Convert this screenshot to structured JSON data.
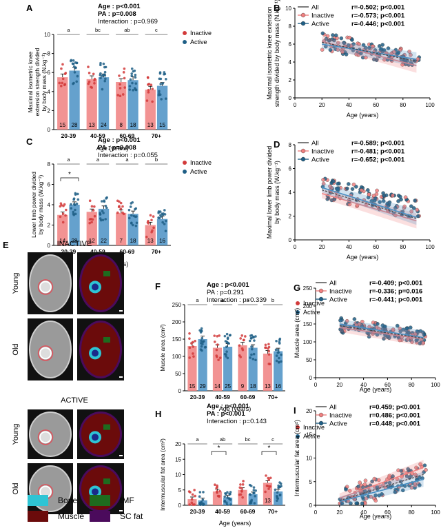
{
  "colors": {
    "inactive": "#f08080",
    "active": "#4a90c4",
    "inactive_dot": "#d23a3a",
    "active_dot": "#1f5f86",
    "all_line": "#444444"
  },
  "bar_panels": [
    {
      "letter": "A",
      "stats": [
        "Age : p<0.001",
        "PA : p=0.008",
        "Interaction : p=0.969"
      ],
      "stats_bold": [
        true,
        true,
        false
      ],
      "ylabel": [
        "Maximal isometric knee",
        "extension strength divided",
        "by body mass (N.kg⁻¹)"
      ],
      "xlabel": "Age (years)",
      "legend": [
        "Inactive",
        "Active"
      ],
      "chart_data": {
        "type": "bar",
        "categories": [
          "20-39",
          "40-59",
          "60-69",
          "70+"
        ],
        "ylim": [
          0,
          10
        ],
        "yticks": [
          "0",
          "2",
          "4",
          "6",
          "8",
          "10"
        ],
        "series": [
          {
            "name": "Inactive",
            "values": [
              5.5,
              5.3,
              5.0,
              4.2
            ],
            "n": [
              "15",
              "13",
              "8",
              "13"
            ]
          },
          {
            "name": "Active",
            "values": [
              6.2,
              5.5,
              5.2,
              4.6
            ],
            "n": [
              "28",
              "24",
              "18",
              "15"
            ]
          }
        ],
        "group_letters": [
          "a",
          "bc",
          "ab",
          "c"
        ],
        "star": ""
      }
    },
    {
      "letter": "C",
      "stats": [
        "Age : p<0.001",
        "PA : p=0.008",
        "Interaction : p=0.055"
      ],
      "stats_bold": [
        true,
        true,
        false
      ],
      "ylabel": [
        "Lower limb power divided",
        "by body mass (W.kg⁻¹)"
      ],
      "xlabel": "Age (years)",
      "legend": [
        "Inactive",
        "Active"
      ],
      "chart_data": {
        "type": "bar",
        "categories": [
          "20-39",
          "40-59",
          "60-69",
          "70+"
        ],
        "ylim": [
          0,
          8
        ],
        "yticks": [
          "0",
          "2",
          "4",
          "6",
          "8"
        ],
        "series": [
          {
            "name": "Inactive",
            "values": [
              3.0,
              3.3,
              3.2,
              2.0
            ],
            "n": [
              "14",
              "12",
              "7",
              "13"
            ]
          },
          {
            "name": "Active",
            "values": [
              4.0,
              3.6,
              3.1,
              2.6
            ],
            "n": [
              "28",
              "22",
              "18",
              "16"
            ]
          }
        ],
        "group_letters": [
          "a",
          "a",
          "a",
          "b"
        ],
        "star": "*"
      }
    },
    {
      "letter": "F",
      "stats": [
        "Age : p<0.001",
        "PA : p=0.291",
        "Interaction : p=0.339"
      ],
      "stats_bold": [
        true,
        false,
        false
      ],
      "ylabel": [
        "Muscle area (cm²)"
      ],
      "xlabel": "Age (years)",
      "legend": [
        "Inactive",
        "Active"
      ],
      "chart_data": {
        "type": "bar",
        "categories": [
          "20-39",
          "40-59",
          "60-69",
          "70+"
        ],
        "ylim": [
          0,
          250
        ],
        "yticks": [
          "0",
          "50",
          "100",
          "150",
          "200",
          "250"
        ],
        "series": [
          {
            "name": "Inactive",
            "values": [
              130,
              125,
              132,
              108
            ],
            "n": [
              "15",
              "14",
              "9",
              "13"
            ]
          },
          {
            "name": "Active",
            "values": [
              150,
              128,
              125,
              115
            ],
            "n": [
              "29",
              "25",
              "18",
              "16"
            ]
          }
        ],
        "group_letters": [
          "a",
          "a",
          "a",
          "b"
        ],
        "star": ""
      }
    },
    {
      "letter": "H",
      "stats": [
        "Age : p<0.001",
        "PA : p<0.001",
        "Interaction : p=0.143"
      ],
      "stats_bold": [
        true,
        true,
        false
      ],
      "ylabel": [
        "Intermuscular fat area (cm²)"
      ],
      "xlabel": "Age (years)",
      "legend": [
        "Inactive",
        "Active"
      ],
      "chart_data": {
        "type": "bar",
        "categories": [
          "20-39",
          "40-59",
          "60-69",
          "70+"
        ],
        "ylim": [
          0,
          20
        ],
        "yticks": [
          "0",
          "5",
          "10",
          "15",
          "20"
        ],
        "series": [
          {
            "name": "Inactive",
            "values": [
              2.0,
              4.5,
              5.0,
              7.3
            ],
            "n": [
              "",
              "",
              "",
              "13"
            ]
          },
          {
            "name": "Active",
            "values": [
              1.6,
              2.5,
              3.6,
              4.5
            ],
            "n": [
              "",
              "",
              "",
              ""
            ]
          }
        ],
        "group_letters": [
          "a",
          "ab",
          "bc",
          "c"
        ],
        "star": "*"
      }
    }
  ],
  "scatter_panels": [
    {
      "letter": "B",
      "ylabel": [
        "Maximal isometric knee extension",
        "strength divided by body mass (N.kg⁻¹)"
      ],
      "xlabel": "Age (years)",
      "legend": [
        {
          "name": "All",
          "stat": "r=-0.502; p<0.001"
        },
        {
          "name": "Inactive",
          "stat": "r=-0.573; p<0.001"
        },
        {
          "name": "Active",
          "stat": "r=-0.446; p<0.001"
        }
      ],
      "chart_data": {
        "type": "scatter",
        "xlim": [
          0,
          100
        ],
        "ylim": [
          0,
          10
        ],
        "xticks": [
          "0",
          "20",
          "40",
          "60",
          "80",
          "100"
        ],
        "yticks": [
          "0",
          "2",
          "4",
          "6",
          "8",
          "10"
        ],
        "trend": {
          "all": [
            [
              20,
              6.2
            ],
            [
              90,
              4.1
            ]
          ],
          "inactive": [
            [
              20,
              6.3
            ],
            [
              90,
              3.6
            ]
          ],
          "active": [
            [
              20,
              6.0
            ],
            [
              90,
              4.3
            ]
          ]
        },
        "ycenter": [
          6.3,
          -0.028
        ],
        "spread": 1.0
      }
    },
    {
      "letter": "D",
      "ylabel": [
        "Maximal lower limb power divided",
        "by body mass (W.kg⁻¹)"
      ],
      "xlabel": "Age (years)",
      "legend": [
        {
          "name": "All",
          "stat": "r=-0.589; p<0.001"
        },
        {
          "name": "Inactive",
          "stat": "r=-0.481; p<0.001"
        },
        {
          "name": "Active",
          "stat": "r=-0.652; p<0.001"
        }
      ],
      "chart_data": {
        "type": "scatter",
        "xlim": [
          0,
          100
        ],
        "ylim": [
          0,
          8
        ],
        "xticks": [
          "0",
          "20",
          "40",
          "60",
          "80",
          "100"
        ],
        "yticks": [
          "0",
          "2",
          "4",
          "6",
          "8"
        ],
        "trend": {
          "all": [
            [
              20,
              4.2
            ],
            [
              90,
              1.8
            ]
          ],
          "inactive": [
            [
              20,
              3.9
            ],
            [
              90,
              1.6
            ]
          ],
          "active": [
            [
              20,
              4.4
            ],
            [
              90,
              1.9
            ]
          ]
        },
        "ycenter": [
          4.4,
          -0.033
        ],
        "spread": 0.9
      }
    },
    {
      "letter": "G",
      "ylabel": [
        "Muscle area (cm²)"
      ],
      "xlabel": "Age (years)",
      "legend": [
        {
          "name": "All",
          "stat": "r=-0.409; p<0.001"
        },
        {
          "name": "Inactive",
          "stat": "r=-0.336; p=0.016"
        },
        {
          "name": "Active",
          "stat": "r=-0.441; p<0.001"
        }
      ],
      "chart_data": {
        "type": "scatter",
        "xlim": [
          0,
          100
        ],
        "ylim": [
          0,
          250
        ],
        "xticks": [
          "0",
          "20",
          "40",
          "60",
          "80",
          "100"
        ],
        "yticks": [
          "0",
          "50",
          "100",
          "150",
          "200",
          "250"
        ],
        "trend": {
          "all": [
            [
              20,
              145
            ],
            [
              90,
              110
            ]
          ],
          "inactive": [
            [
              20,
              140
            ],
            [
              90,
              108
            ]
          ],
          "active": [
            [
              20,
              150
            ],
            [
              90,
              112
            ]
          ]
        },
        "ycenter": [
          148,
          -0.5
        ],
        "spread": 22
      }
    },
    {
      "letter": "I",
      "ylabel": [
        "Intermuscular fat area (cm²)"
      ],
      "xlabel": "Age (years)",
      "legend": [
        {
          "name": "All",
          "stat": "r=0.459; p<0.001"
        },
        {
          "name": "Inactive",
          "stat": "r=0.486; p<0.001"
        },
        {
          "name": "Active",
          "stat": "r=0.448; p<0.001"
        }
      ],
      "chart_data": {
        "type": "scatter",
        "xlim": [
          0,
          100
        ],
        "ylim": [
          0,
          20
        ],
        "xticks": [
          "0",
          "20",
          "40",
          "60",
          "80",
          "100"
        ],
        "yticks": [
          "0",
          "5",
          "10",
          "15",
          "20"
        ],
        "trend": {
          "all": [
            [
              20,
              1.0
            ],
            [
              90,
              6.5
            ]
          ],
          "inactive": [
            [
              20,
              1.5
            ],
            [
              90,
              8.0
            ]
          ],
          "active": [
            [
              20,
              0.8
            ],
            [
              90,
              5.5
            ]
          ]
        },
        "ycenter": [
          1.0,
          0.08
        ],
        "spread": 2.5
      }
    }
  ],
  "panel_e": {
    "letter": "E",
    "inactive_title": "INACTIVE",
    "active_title": "ACTIVE",
    "row_labels": [
      "Young",
      "Old",
      "Young",
      "Old"
    ],
    "legend": [
      {
        "label": "Bone",
        "color": "#2ec4d4"
      },
      {
        "label": "IMF",
        "color": "#1e6b1e"
      },
      {
        "label": "Muscle",
        "color": "#6b0b0b"
      },
      {
        "label": "SC fat",
        "color": "#4b0b5c"
      }
    ]
  }
}
